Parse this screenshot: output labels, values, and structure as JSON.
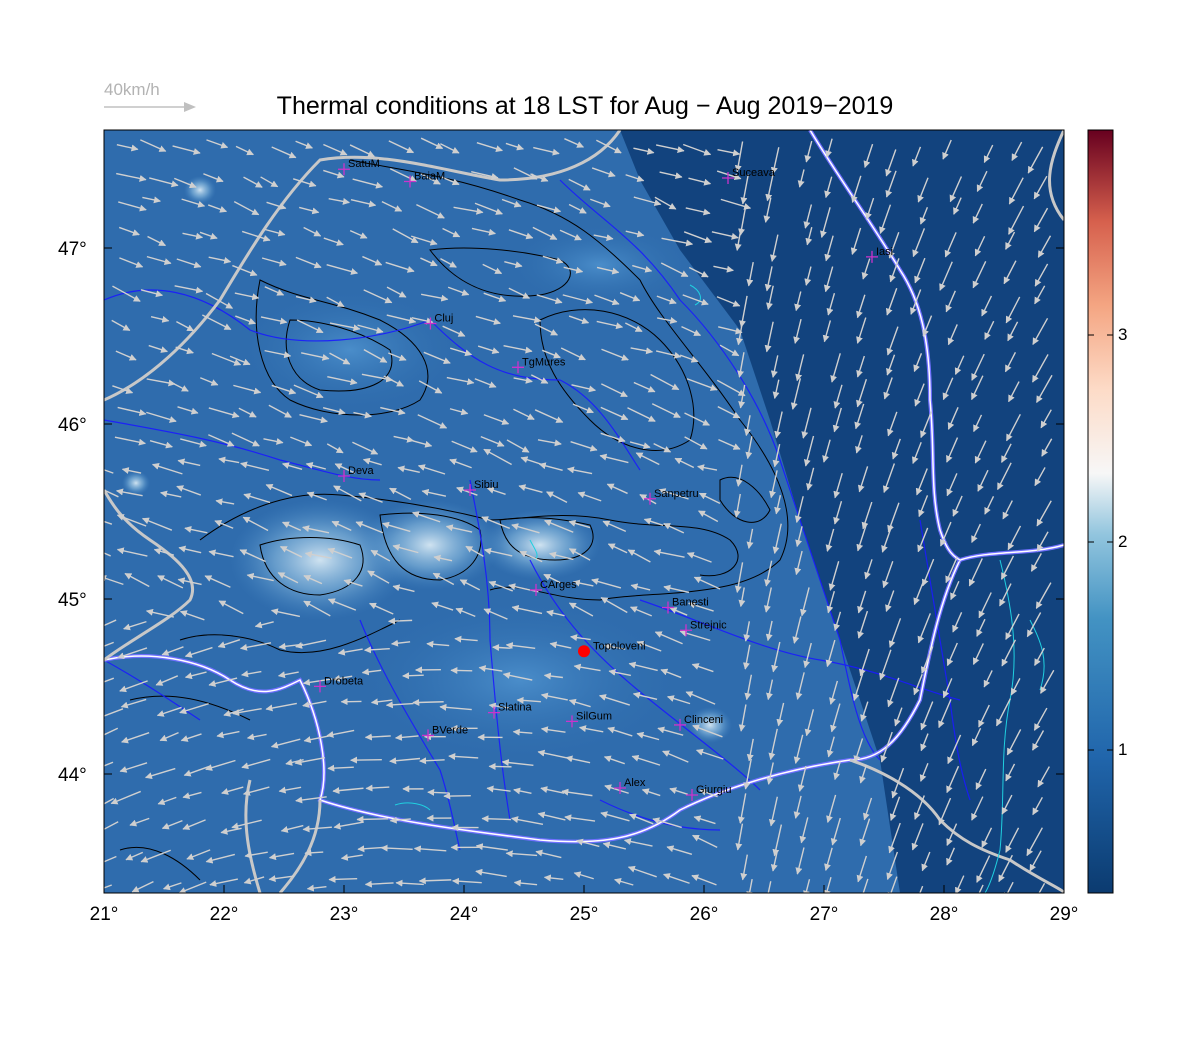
{
  "title": "Thermal conditions at 18 LST for Aug − Aug  2019−2019",
  "reference_vector": {
    "label": "40km/h"
  },
  "x_ticks": [
    "21°",
    "22°",
    "23°",
    "24°",
    "25°",
    "26°",
    "27°",
    "28°",
    "29°"
  ],
  "y_ticks": [
    "44°",
    "45°",
    "46°",
    "47°"
  ],
  "colorbar_ticks": [
    "1",
    "2",
    "3"
  ],
  "colors": {
    "field_dark": "#0d3a73",
    "field_mid": "#2e6fb0",
    "marker": "#cc33cc",
    "focus": "#ff0000",
    "arrow": "#cccccc",
    "river": "#1a1aff",
    "border": "#c8c8c8"
  },
  "stations": [
    {
      "name": "SatuM",
      "lon": 23.0,
      "lat": 47.45
    },
    {
      "name": "BaiaM",
      "lon": 23.55,
      "lat": 47.38
    },
    {
      "name": "Suceava",
      "lon": 26.2,
      "lat": 47.4
    },
    {
      "name": "Iasi",
      "lon": 27.4,
      "lat": 46.95
    },
    {
      "name": "Cluj",
      "lon": 23.72,
      "lat": 46.57
    },
    {
      "name": "TgMures",
      "lon": 24.45,
      "lat": 46.32
    },
    {
      "name": "Deva",
      "lon": 23.0,
      "lat": 45.7
    },
    {
      "name": "Sibiu",
      "lon": 24.05,
      "lat": 45.62
    },
    {
      "name": "Sanpetru",
      "lon": 25.55,
      "lat": 45.57
    },
    {
      "name": "CArges",
      "lon": 24.6,
      "lat": 45.05
    },
    {
      "name": "Banesti",
      "lon": 25.7,
      "lat": 44.95
    },
    {
      "name": "Strejnic",
      "lon": 25.85,
      "lat": 44.82
    },
    {
      "name": "Topoloveni",
      "lon": 25.0,
      "lat": 44.7
    },
    {
      "name": "Drobeta",
      "lon": 22.8,
      "lat": 44.5
    },
    {
      "name": "Slatina",
      "lon": 24.25,
      "lat": 44.35
    },
    {
      "name": "SilGum",
      "lon": 24.9,
      "lat": 44.3
    },
    {
      "name": "Clinceni",
      "lon": 25.8,
      "lat": 44.28
    },
    {
      "name": "BVerde",
      "lon": 23.7,
      "lat": 44.22
    },
    {
      "name": "Alex",
      "lon": 25.3,
      "lat": 43.92
    },
    {
      "name": "Giurgiu",
      "lon": 25.9,
      "lat": 43.88
    }
  ],
  "focus_station": "Topoloveni"
}
